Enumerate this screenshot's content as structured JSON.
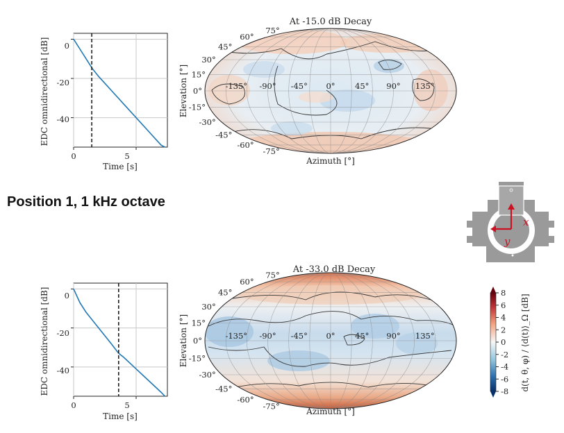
{
  "section_heading": "Position 1, 1 kHz octave",
  "chart_data": [
    {
      "type": "line",
      "panel": "top-edc",
      "xlabel": "Time [s]",
      "ylabel": "EDC omnidirectional [dB]",
      "xlim": [
        0,
        7.5
      ],
      "ylim": [
        -55,
        3
      ],
      "xticks": [
        0,
        5
      ],
      "yticks": [
        0,
        -20,
        -40
      ],
      "grid": true,
      "series": [
        {
          "x": [
            0,
            0.5,
            1,
            1.5,
            2,
            3,
            4,
            5,
            6,
            7,
            7.3
          ],
          "y": [
            0,
            -5,
            -10,
            -15,
            -19,
            -26,
            -33,
            -40,
            -47,
            -54,
            -55
          ],
          "color": "#1f77b4"
        }
      ],
      "marker_line_x": 1.45
    },
    {
      "type": "heatmap",
      "panel": "top-map",
      "title": "At -15.0 dB Decay",
      "xlabel": "Azimuth [°]",
      "ylabel": "Elevation [°]",
      "lon_ticks": [
        "-135°",
        "-90°",
        "-45°",
        "0°",
        "45°",
        "90°",
        "135°"
      ],
      "lat_ticks": [
        "75°",
        "60°",
        "45°",
        "30°",
        "15°",
        "0°",
        "-15°",
        "-30°",
        "-45°",
        "-60°",
        "-75°"
      ]
    },
    {
      "type": "line",
      "panel": "bottom-edc",
      "xlabel": "Time [s]",
      "ylabel": "EDC omnidirectional [dB]",
      "xlim": [
        0,
        7.5
      ],
      "ylim": [
        -55,
        3
      ],
      "xticks": [
        0,
        5
      ],
      "yticks": [
        0,
        -20,
        -40
      ],
      "grid": true,
      "series": [
        {
          "x": [
            0,
            0.5,
            1,
            2,
            3,
            3.6,
            4,
            5,
            6,
            7,
            7.3
          ],
          "y": [
            0,
            -7,
            -12,
            -20,
            -28,
            -33,
            -35,
            -41,
            -47,
            -53,
            -55
          ],
          "color": "#1f77b4"
        }
      ],
      "marker_line_x": 3.6
    },
    {
      "type": "heatmap",
      "panel": "bottom-map",
      "title": "At -33.0 dB Decay",
      "xlabel": "Azimuth [°]",
      "ylabel": "Elevation [°]",
      "lon_ticks": [
        "-135°",
        "-90°",
        "-45°",
        "0°",
        "45°",
        "90°",
        "135°"
      ],
      "lat_ticks": [
        "75°",
        "60°",
        "45°",
        "30°",
        "15°",
        "0°",
        "-15°",
        "-30°",
        "-45°",
        "-60°",
        "-75°"
      ]
    },
    {
      "type": "heatmap",
      "panel": "colorbar",
      "ylabel": "d(t, θ, φ) / ⟨d(t)⟩_Ω [dB]",
      "ticks": [
        8,
        6,
        4,
        2,
        0,
        -2,
        -4,
        -6,
        -8
      ],
      "range": [
        -8,
        8
      ],
      "colors": {
        "low": "#08306b",
        "mid": "#f7f7f7",
        "high": "#67000d"
      }
    }
  ],
  "floorplan": {
    "axis_labels": [
      "x",
      "y"
    ],
    "accent_color": "#cc1122"
  }
}
